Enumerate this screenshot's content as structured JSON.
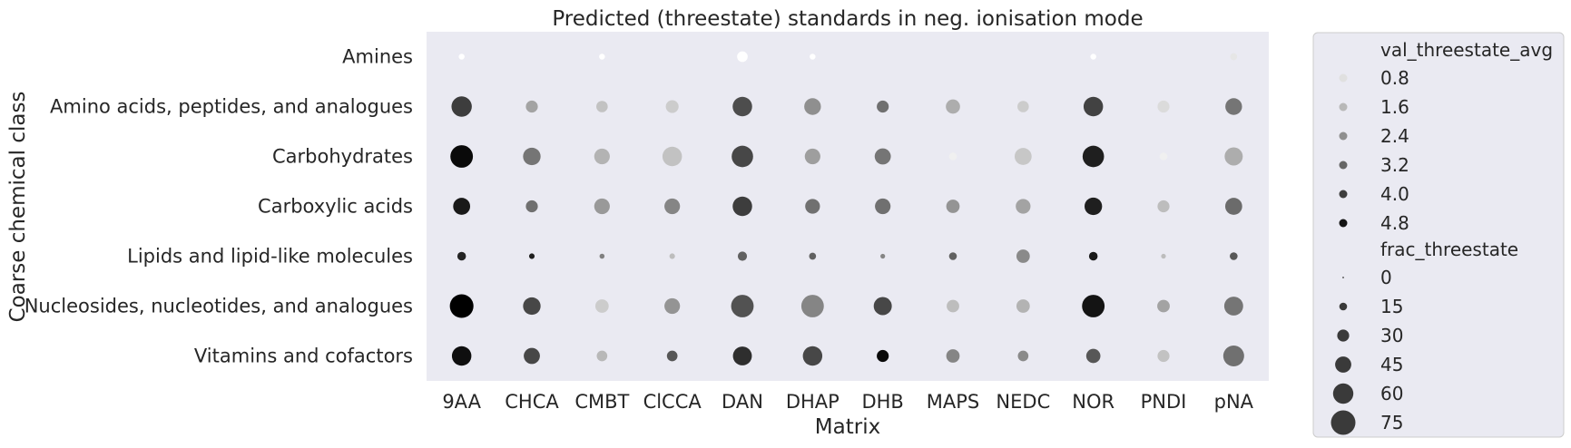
{
  "chart_data": {
    "type": "scatter",
    "title": "Predicted (threestate) standards in neg. ionisation mode",
    "xlabel": "Matrix",
    "ylabel": "Coarse chemical class",
    "x_categories": [
      "9AA",
      "CHCA",
      "CMBT",
      "ClCCA",
      "DAN",
      "DHAP",
      "DHB",
      "MAPS",
      "NEDC",
      "NOR",
      "PNDI",
      "pNA"
    ],
    "y_categories": [
      "Amines",
      "Amino acids, peptides, and analogues",
      "Carbohydrates",
      "Carboxylic acids",
      "Lipids and lipid-like molecules",
      "Nucleosides, nucleotides, and analogues",
      "Vitamins and cofactors"
    ],
    "grid": false,
    "legend_position": "right, outside",
    "hue_variable": "val_threestate_avg",
    "size_variable": "frac_threestate",
    "legend": {
      "hue_title": "val_threestate_avg",
      "hue_entries": [
        {
          "label": "0.8",
          "value": 0.8
        },
        {
          "label": "1.6",
          "value": 1.6
        },
        {
          "label": "2.4",
          "value": 2.4
        },
        {
          "label": "3.2",
          "value": 3.2
        },
        {
          "label": "4.0",
          "value": 4.0
        },
        {
          "label": "4.8",
          "value": 4.8
        }
      ],
      "size_title": "frac_threestate",
      "size_entries": [
        {
          "label": "0",
          "value": 0
        },
        {
          "label": "15",
          "value": 15
        },
        {
          "label": "30",
          "value": 30
        },
        {
          "label": "45",
          "value": 45
        },
        {
          "label": "60",
          "value": 60
        },
        {
          "label": "75",
          "value": 75
        }
      ]
    },
    "points": [
      {
        "x": "9AA",
        "y": "Amines",
        "hue": 0.2,
        "size": 8
      },
      {
        "x": "CMBT",
        "y": "Amines",
        "hue": 0.2,
        "size": 8
      },
      {
        "x": "DAN",
        "y": "Amines",
        "hue": 0.2,
        "size": 25
      },
      {
        "x": "DHAP",
        "y": "Amines",
        "hue": 0.2,
        "size": 8
      },
      {
        "x": "NOR",
        "y": "Amines",
        "hue": 0.2,
        "size": 8
      },
      {
        "x": "pNA",
        "y": "Amines",
        "hue": 0.7,
        "size": 12
      },
      {
        "x": "9AA",
        "y": "Amino acids, peptides, and analogues",
        "hue": 4.0,
        "size": 60
      },
      {
        "x": "CHCA",
        "y": "Amino acids, peptides, and analogues",
        "hue": 2.0,
        "size": 30
      },
      {
        "x": "CMBT",
        "y": "Amino acids, peptides, and analogues",
        "hue": 1.4,
        "size": 28
      },
      {
        "x": "ClCCA",
        "y": "Amino acids, peptides, and analogues",
        "hue": 1.2,
        "size": 33
      },
      {
        "x": "DAN",
        "y": "Amino acids, peptides, and analogues",
        "hue": 3.7,
        "size": 57
      },
      {
        "x": "DHAP",
        "y": "Amino acids, peptides, and analogues",
        "hue": 2.4,
        "size": 47
      },
      {
        "x": "DHB",
        "y": "Amino acids, peptides, and analogues",
        "hue": 3.0,
        "size": 30
      },
      {
        "x": "MAPS",
        "y": "Amino acids, peptides, and analogues",
        "hue": 1.8,
        "size": 38
      },
      {
        "x": "NEDC",
        "y": "Amino acids, peptides, and analogues",
        "hue": 1.2,
        "size": 28
      },
      {
        "x": "NOR",
        "y": "Amino acids, peptides, and analogues",
        "hue": 3.9,
        "size": 57
      },
      {
        "x": "PNDI",
        "y": "Amino acids, peptides, and analogues",
        "hue": 0.9,
        "size": 30
      },
      {
        "x": "pNA",
        "y": "Amino acids, peptides, and analogues",
        "hue": 2.9,
        "size": 47
      },
      {
        "x": "9AA",
        "y": "Carbohydrates",
        "hue": 5.0,
        "size": 68
      },
      {
        "x": "CHCA",
        "y": "Carbohydrates",
        "hue": 2.9,
        "size": 50
      },
      {
        "x": "CMBT",
        "y": "Carbohydrates",
        "hue": 1.7,
        "size": 43
      },
      {
        "x": "ClCCA",
        "y": "Carbohydrates",
        "hue": 1.4,
        "size": 57
      },
      {
        "x": "DAN",
        "y": "Carbohydrates",
        "hue": 3.8,
        "size": 64
      },
      {
        "x": "DHAP",
        "y": "Carbohydrates",
        "hue": 2.1,
        "size": 43
      },
      {
        "x": "DHB",
        "y": "Carbohydrates",
        "hue": 2.9,
        "size": 45
      },
      {
        "x": "MAPS",
        "y": "Carbohydrates",
        "hue": 0.5,
        "size": 15
      },
      {
        "x": "NEDC",
        "y": "Carbohydrates",
        "hue": 1.3,
        "size": 48
      },
      {
        "x": "NOR",
        "y": "Carbohydrates",
        "hue": 4.6,
        "size": 64
      },
      {
        "x": "PNDI",
        "y": "Carbohydrates",
        "hue": 0.5,
        "size": 15
      },
      {
        "x": "pNA",
        "y": "Carbohydrates",
        "hue": 1.8,
        "size": 52
      },
      {
        "x": "9AA",
        "y": "Carboxylic acids",
        "hue": 4.7,
        "size": 48
      },
      {
        "x": "CHCA",
        "y": "Carboxylic acids",
        "hue": 3.0,
        "size": 30
      },
      {
        "x": "CMBT",
        "y": "Carboxylic acids",
        "hue": 2.2,
        "size": 43
      },
      {
        "x": "ClCCA",
        "y": "Carboxylic acids",
        "hue": 2.6,
        "size": 43
      },
      {
        "x": "DAN",
        "y": "Carboxylic acids",
        "hue": 4.0,
        "size": 57
      },
      {
        "x": "DHAP",
        "y": "Carboxylic acids",
        "hue": 3.0,
        "size": 40
      },
      {
        "x": "DHB",
        "y": "Carboxylic acids",
        "hue": 3.0,
        "size": 43
      },
      {
        "x": "MAPS",
        "y": "Carboxylic acids",
        "hue": 2.3,
        "size": 35
      },
      {
        "x": "NEDC",
        "y": "Carboxylic acids",
        "hue": 2.0,
        "size": 40
      },
      {
        "x": "NOR",
        "y": "Carboxylic acids",
        "hue": 4.6,
        "size": 50
      },
      {
        "x": "PNDI",
        "y": "Carboxylic acids",
        "hue": 1.5,
        "size": 30
      },
      {
        "x": "pNA",
        "y": "Carboxylic acids",
        "hue": 3.1,
        "size": 48
      },
      {
        "x": "9AA",
        "y": "Lipids and lipid-like molecules",
        "hue": 4.5,
        "size": 18
      },
      {
        "x": "CHCA",
        "y": "Lipids and lipid-like molecules",
        "hue": 4.6,
        "size": 7
      },
      {
        "x": "CMBT",
        "y": "Lipids and lipid-like molecules",
        "hue": 2.7,
        "size": 5
      },
      {
        "x": "ClCCA",
        "y": "Lipids and lipid-like molecules",
        "hue": 1.5,
        "size": 7
      },
      {
        "x": "DAN",
        "y": "Lipids and lipid-like molecules",
        "hue": 3.3,
        "size": 20
      },
      {
        "x": "DHAP",
        "y": "Lipids and lipid-like molecules",
        "hue": 3.3,
        "size": 12
      },
      {
        "x": "DHB",
        "y": "Lipids and lipid-like molecules",
        "hue": 2.6,
        "size": 4
      },
      {
        "x": "MAPS",
        "y": "Lipids and lipid-like molecules",
        "hue": 3.3,
        "size": 15
      },
      {
        "x": "NEDC",
        "y": "Lipids and lipid-like molecules",
        "hue": 2.5,
        "size": 35
      },
      {
        "x": "NOR",
        "y": "Lipids and lipid-like molecules",
        "hue": 4.7,
        "size": 18
      },
      {
        "x": "PNDI",
        "y": "Lipids and lipid-like molecules",
        "hue": 1.5,
        "size": 4
      },
      {
        "x": "pNA",
        "y": "Lipids and lipid-like molecules",
        "hue": 3.5,
        "size": 15
      },
      {
        "x": "9AA",
        "y": "Nucleosides, nucleotides, and analogues",
        "hue": 5.2,
        "size": 72
      },
      {
        "x": "CHCA",
        "y": "Nucleosides, nucleotides, and analogues",
        "hue": 3.8,
        "size": 50
      },
      {
        "x": "CMBT",
        "y": "Nucleosides, nucleotides, and analogues",
        "hue": 1.2,
        "size": 35
      },
      {
        "x": "ClCCA",
        "y": "Nucleosides, nucleotides, and analogues",
        "hue": 2.3,
        "size": 43
      },
      {
        "x": "DAN",
        "y": "Nucleosides, nucleotides, and analogues",
        "hue": 3.6,
        "size": 68
      },
      {
        "x": "DHAP",
        "y": "Nucleosides, nucleotides, and analogues",
        "hue": 2.6,
        "size": 68
      },
      {
        "x": "DHB",
        "y": "Nucleosides, nucleotides, and analogues",
        "hue": 3.8,
        "size": 52
      },
      {
        "x": "MAPS",
        "y": "Nucleosides, nucleotides, and analogues",
        "hue": 1.5,
        "size": 32
      },
      {
        "x": "NEDC",
        "y": "Nucleosides, nucleotides, and analogues",
        "hue": 1.7,
        "size": 35
      },
      {
        "x": "NOR",
        "y": "Nucleosides, nucleotides, and analogues",
        "hue": 4.8,
        "size": 68
      },
      {
        "x": "PNDI",
        "y": "Nucleosides, nucleotides, and analogues",
        "hue": 2.0,
        "size": 32
      },
      {
        "x": "pNA",
        "y": "Nucleosides, nucleotides, and analogues",
        "hue": 2.9,
        "size": 55
      },
      {
        "x": "9AA",
        "y": "Vitamins and cofactors",
        "hue": 4.9,
        "size": 57
      },
      {
        "x": "CHCA",
        "y": "Vitamins and cofactors",
        "hue": 3.8,
        "size": 45
      },
      {
        "x": "CMBT",
        "y": "Vitamins and cofactors",
        "hue": 1.6,
        "size": 25
      },
      {
        "x": "ClCCA",
        "y": "Vitamins and cofactors",
        "hue": 3.5,
        "size": 25
      },
      {
        "x": "DAN",
        "y": "Vitamins and cofactors",
        "hue": 4.3,
        "size": 55
      },
      {
        "x": "DHAP",
        "y": "Vitamins and cofactors",
        "hue": 3.8,
        "size": 57
      },
      {
        "x": "DHB",
        "y": "Vitamins and cofactors",
        "hue": 5.0,
        "size": 30
      },
      {
        "x": "MAPS",
        "y": "Vitamins and cofactors",
        "hue": 2.6,
        "size": 35
      },
      {
        "x": "NEDC",
        "y": "Vitamins and cofactors",
        "hue": 2.5,
        "size": 25
      },
      {
        "x": "NOR",
        "y": "Vitamins and cofactors",
        "hue": 3.5,
        "size": 38
      },
      {
        "x": "PNDI",
        "y": "Vitamins and cofactors",
        "hue": 1.4,
        "size": 30
      },
      {
        "x": "pNA",
        "y": "Vitamins and cofactors",
        "hue": 3.0,
        "size": 62
      }
    ]
  }
}
